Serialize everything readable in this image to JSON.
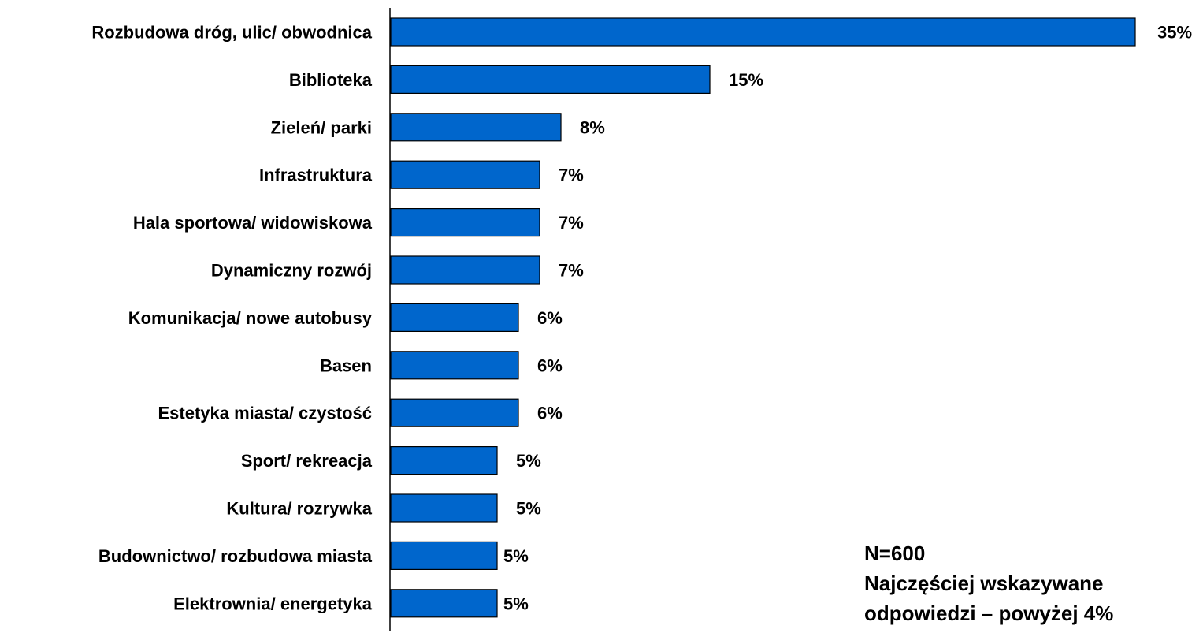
{
  "chart_data": {
    "type": "bar",
    "orientation": "horizontal",
    "categories": [
      "Rozbudowa dróg, ulic/ obwodnica",
      "Biblioteka",
      "Zieleń/ parki",
      "Infrastruktura",
      "Hala sportowa/ widowiskowa",
      "Dynamiczny rozwój",
      "Komunikacja/ nowe autobusy",
      "Basen",
      "Estetyka miasta/ czystość",
      "Sport/ rekreacja",
      "Kultura/ rozrywka",
      "Budownictwo/ rozbudowa miasta",
      "Elektrownia/ energetyka"
    ],
    "values": [
      35,
      15,
      8,
      7,
      7,
      7,
      6,
      6,
      6,
      5,
      5,
      5,
      5
    ],
    "value_labels": [
      "35%",
      "15%",
      "8%",
      "7%",
      "7%",
      "7%",
      "6%",
      "6%",
      "6%",
      "5%",
      "5%",
      "5%",
      "5%"
    ],
    "xlim": [
      0,
      35
    ],
    "grid": false,
    "bar_color": "#0066CC",
    "bar_edge_color": "#000000"
  },
  "note": {
    "line1": "N=600",
    "line2": "Najczęściej wskazywane",
    "line3": "odpowiedzi – powyżej 4%"
  }
}
